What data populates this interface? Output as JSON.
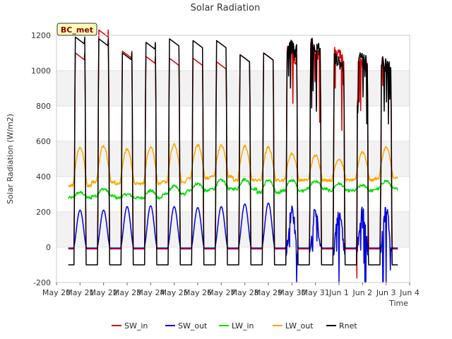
{
  "chart_data": {
    "type": "line",
    "title": "Solar Radiation",
    "xlabel": "Time",
    "ylabel": "Solar Radiation (W/m2)",
    "badge": "BC_met",
    "ylim": [
      -200,
      1200
    ],
    "yticks": [
      -200,
      0,
      200,
      400,
      600,
      800,
      1000,
      1200
    ],
    "xlim": [
      0,
      15
    ],
    "xtick_labels": [
      "May 20",
      "May 21",
      "May 22",
      "May 23",
      "May 24",
      "May 25",
      "May 26",
      "May 27",
      "May 28",
      "May 29",
      "May 30",
      "May 31",
      "Jun 1",
      "Jun 2",
      "Jun 3",
      "Jun 4"
    ],
    "grid": "horizontal bands",
    "legend_position": "bottom",
    "x_unit": "days since May 20",
    "series": [
      {
        "name": "SW_in",
        "color": "#dd0000",
        "daily_peak": [
          1100,
          1230,
          1110,
          1080,
          1070,
          1070,
          1050,
          1090,
          1100,
          1150,
          1170,
          1140,
          1100,
          1080
        ],
        "night_value": -10,
        "shape": "plateau"
      },
      {
        "name": "SW_out",
        "color": "#0000dd",
        "daily_peak": [
          210,
          210,
          230,
          235,
          230,
          225,
          230,
          245,
          250,
          235,
          235,
          215,
          240,
          240
        ],
        "night_value": -5,
        "shape": "bell"
      },
      {
        "name": "LW_in",
        "color": "#00dd00",
        "daily_min": [
          280,
          290,
          280,
          280,
          300,
          320,
          330,
          330,
          310,
          320,
          330,
          320,
          320,
          330
        ],
        "daily_max": [
          310,
          330,
          300,
          320,
          345,
          360,
          380,
          385,
          380,
          380,
          375,
          360,
          350,
          375
        ]
      },
      {
        "name": "LW_out",
        "color": "#ffa500",
        "daily_min": [
          350,
          370,
          360,
          360,
          370,
          390,
          400,
          380,
          380,
          380,
          380,
          380,
          380,
          390
        ],
        "daily_max": [
          565,
          575,
          555,
          570,
          580,
          580,
          575,
          570,
          565,
          530,
          520,
          500,
          540,
          565
        ]
      },
      {
        "name": "Rnet",
        "color": "#000000",
        "daily_peak": [
          1190,
          1180,
          1100,
          1160,
          1180,
          1170,
          1170,
          1090,
          1100,
          1190,
          1190,
          1110,
          1120,
          1090
        ],
        "night_value": -100,
        "shape": "plateau"
      }
    ]
  }
}
